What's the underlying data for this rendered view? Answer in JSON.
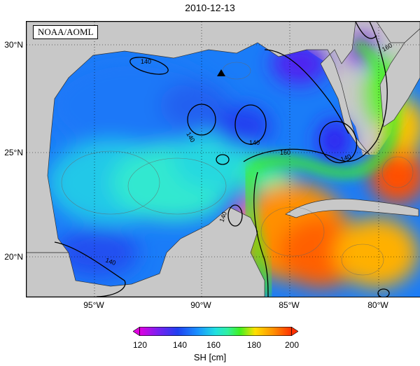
{
  "title": "2010-12-13",
  "badge": "NOAA/AOML",
  "lat_ticks": [
    "30°N",
    "25°N",
    "20°N"
  ],
  "lon_ticks": [
    "95°W",
    "90°W",
    "85°W",
    "80°W"
  ],
  "contours": {
    "c140": "140",
    "c160": "160"
  },
  "colorbar": {
    "label": "SH [cm]",
    "ticks": [
      "120",
      "140",
      "160",
      "180",
      "200"
    ],
    "range": [
      120,
      200
    ],
    "colors": [
      "#e000e0",
      "#7a20f0",
      "#2040f0",
      "#1a90ff",
      "#20e0e0",
      "#30f0a0",
      "#40f020",
      "#c0f000",
      "#ffe000",
      "#ff9000",
      "#ff3000"
    ]
  },
  "marker": "triangle"
}
